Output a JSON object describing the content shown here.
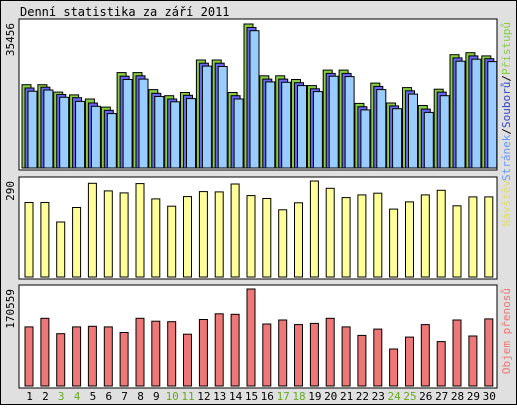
{
  "title": "Denní statistika za září 2011",
  "days": [
    "1",
    "2",
    "3",
    "4",
    "5",
    "6",
    "7",
    "8",
    "9",
    "10",
    "11",
    "12",
    "13",
    "14",
    "15",
    "16",
    "17",
    "18",
    "19",
    "20",
    "21",
    "22",
    "23",
    "24",
    "25",
    "26",
    "27",
    "28",
    "29",
    "30"
  ],
  "weekend_days": [
    3,
    4,
    10,
    11,
    17,
    18,
    24,
    25
  ],
  "colors": {
    "hits": "#88cc44",
    "files": "#6666ee",
    "visits": "#99ccff",
    "sites": "#ffff99",
    "traffic": "#ee7777",
    "weekday_label": "#000000",
    "weekend_label": "#66aa22",
    "frame_bg": "#e0e0e0",
    "panel_bg": "#ffffff"
  },
  "chart_data": [
    {
      "type": "bar",
      "ymax_label": "35456",
      "legend": [
        {
          "text": "Stránek",
          "color": "#6699ff"
        },
        {
          "text": "/",
          "color": "#000000"
        },
        {
          "text": "Souborů",
          "color": "#3344cc"
        },
        {
          "text": "/",
          "color": "#000000"
        },
        {
          "text": "Přístupů",
          "color": "#88cc44"
        }
      ],
      "ylim": [
        0,
        35456
      ],
      "series": [
        {
          "name": "Přístupů",
          "values": [
            20500,
            20500,
            18700,
            18000,
            17000,
            15000,
            23500,
            23500,
            19300,
            17800,
            18600,
            26600,
            26600,
            18600,
            35456,
            22700,
            22700,
            21800,
            20300,
            24100,
            24100,
            15900,
            20900,
            16000,
            19800,
            15400,
            19400,
            27900,
            28400,
            27600
          ]
        },
        {
          "name": "Souborů",
          "values": [
            19700,
            19900,
            18100,
            17300,
            16000,
            14200,
            22600,
            22700,
            18400,
            17000,
            17900,
            25800,
            25800,
            17800,
            34600,
            21900,
            21900,
            21000,
            19500,
            23300,
            23300,
            15100,
            20100,
            15300,
            19000,
            14500,
            18700,
            27100,
            27600,
            26900
          ]
        },
        {
          "name": "Stránek",
          "values": [
            18900,
            19200,
            17400,
            16400,
            15200,
            13400,
            21800,
            21900,
            17600,
            16300,
            17100,
            25100,
            25000,
            17000,
            33800,
            21200,
            21100,
            20300,
            18800,
            22600,
            22500,
            14300,
            19300,
            14600,
            18200,
            13700,
            17800,
            26300,
            26800,
            26200
          ]
        }
      ]
    },
    {
      "type": "bar",
      "ymax_label": "290",
      "legend": [
        {
          "text": "Návštěv",
          "color": "#dddd66"
        }
      ],
      "ylim": [
        0,
        290
      ],
      "series": [
        {
          "name": "Návštěv",
          "values": [
            225,
            225,
            166,
            210,
            283,
            260,
            254,
            282,
            236,
            214,
            243,
            258,
            257,
            281,
            246,
            237,
            203,
            224,
            290,
            268,
            240,
            248,
            253,
            205,
            227,
            248,
            262,
            215,
            242,
            242
          ]
        }
      ]
    },
    {
      "type": "bar",
      "ymax_label": "170559",
      "legend": [
        {
          "text": "Objem přenosů",
          "color": "#ee7777"
        }
      ],
      "ylim": [
        0,
        170559
      ],
      "series": [
        {
          "name": "Objem přenosů",
          "values": [
            104000,
            119000,
            92000,
            104000,
            105000,
            104000,
            94000,
            119000,
            114000,
            113000,
            91000,
            117000,
            127000,
            126000,
            170559,
            109000,
            116000,
            108000,
            110000,
            119000,
            104000,
            89000,
            100000,
            65000,
            86000,
            108000,
            78000,
            116000,
            88000,
            118000
          ]
        }
      ]
    }
  ]
}
